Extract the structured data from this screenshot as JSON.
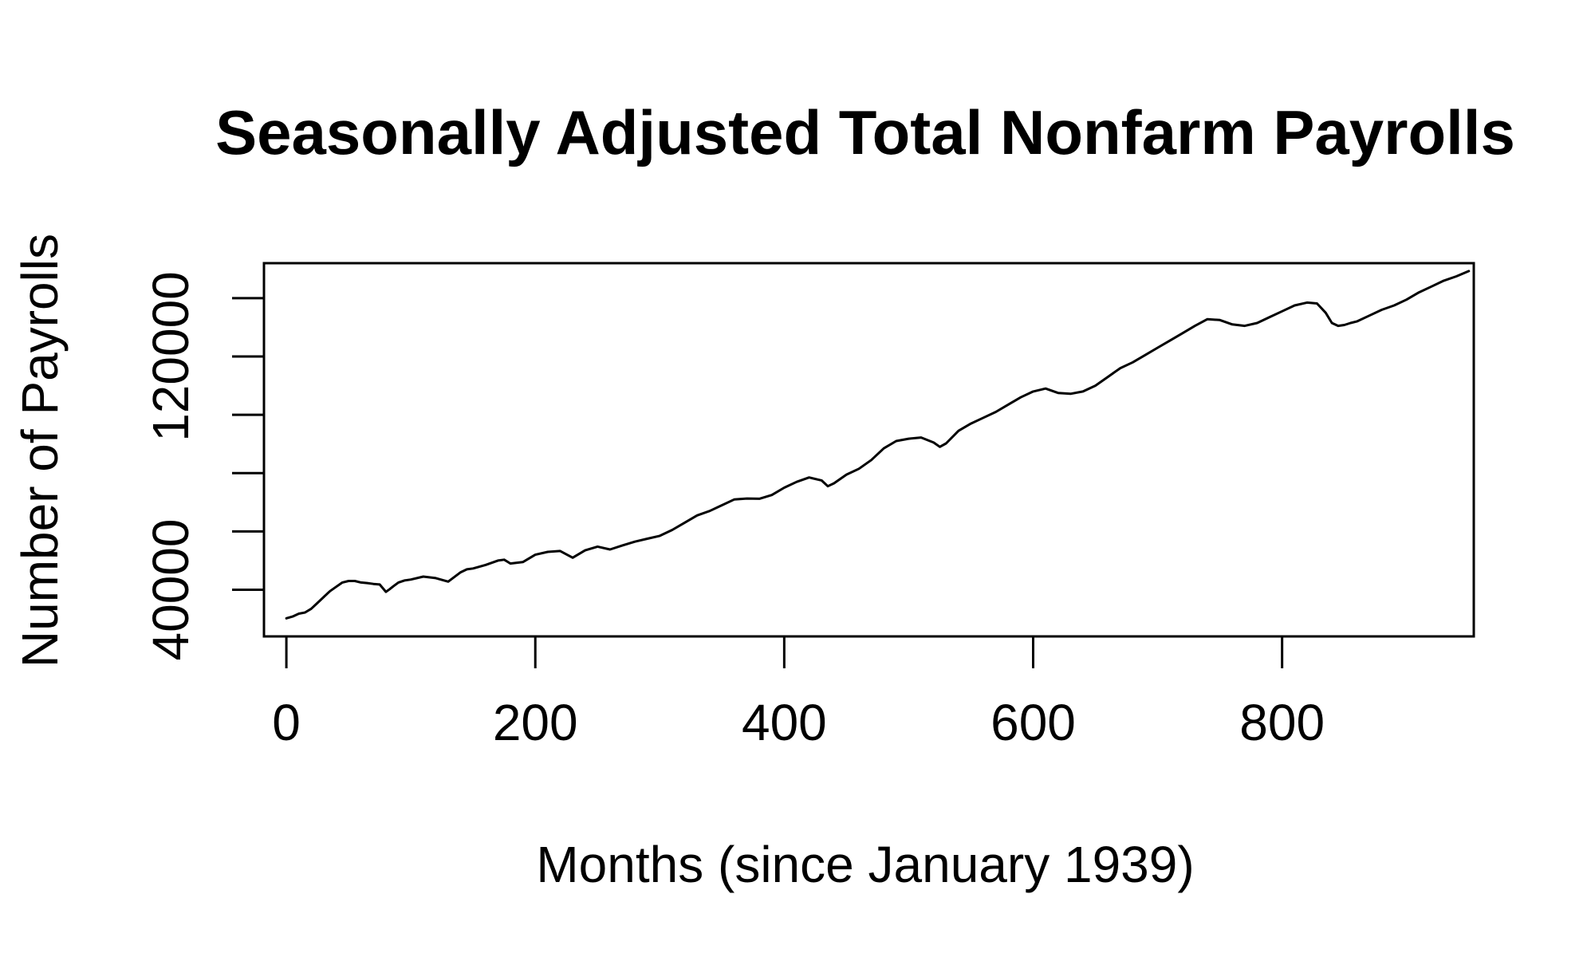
{
  "chart_data": {
    "type": "line",
    "title": "Seasonally Adjusted Total Nonfarm Payrolls",
    "xlabel": "Months (since January 1939)",
    "ylabel": "Number of Payrolls",
    "xlim": [
      -18,
      954
    ],
    "ylim": [
      24000,
      152000
    ],
    "grid": false,
    "x_ticks": [
      0,
      200,
      400,
      600,
      800
    ],
    "x_tick_labels": [
      "0",
      "200",
      "400",
      "600",
      "800"
    ],
    "y_ticks": [
      40000,
      60000,
      80000,
      100000,
      120000,
      140000
    ],
    "y_tick_labels": [
      "40000",
      "",
      "",
      "",
      "120000",
      ""
    ],
    "series": [
      {
        "x": [
          0,
          5,
          10,
          15,
          20,
          25,
          30,
          35,
          40,
          45,
          50,
          55,
          60,
          65,
          70,
          75,
          80,
          83,
          86,
          90,
          95,
          100,
          110,
          120,
          130,
          140,
          145,
          150,
          160,
          170,
          175,
          180,
          190,
          200,
          210,
          220,
          230,
          240,
          250,
          260,
          270,
          280,
          290,
          300,
          310,
          320,
          330,
          340,
          350,
          360,
          370,
          380,
          390,
          400,
          410,
          420,
          430,
          435,
          440,
          450,
          460,
          470,
          480,
          490,
          500,
          510,
          520,
          525,
          530,
          540,
          550,
          560,
          570,
          580,
          590,
          600,
          610,
          620,
          630,
          640,
          650,
          660,
          670,
          680,
          690,
          700,
          710,
          720,
          730,
          740,
          750,
          760,
          770,
          780,
          790,
          800,
          810,
          820,
          828,
          835,
          840,
          845,
          850,
          855,
          860,
          870,
          880,
          890,
          900,
          910,
          920,
          930,
          940,
          950
        ],
        "y": [
          30200,
          30800,
          31800,
          32200,
          33500,
          35500,
          37500,
          39500,
          41000,
          42500,
          43000,
          43000,
          42500,
          42300,
          42000,
          41800,
          39300,
          40200,
          41200,
          42500,
          43200,
          43500,
          44500,
          44000,
          42800,
          46000,
          47000,
          47300,
          48500,
          50000,
          50300,
          49000,
          49500,
          52000,
          53000,
          53300,
          51000,
          53500,
          54800,
          53800,
          55200,
          56500,
          57500,
          58500,
          60500,
          63000,
          65500,
          67000,
          69000,
          71000,
          71300,
          71200,
          72500,
          75000,
          77000,
          78500,
          77500,
          75500,
          76500,
          79500,
          81500,
          84500,
          88500,
          91000,
          91800,
          92200,
          90500,
          89000,
          90200,
          94500,
          97000,
          99000,
          101000,
          103500,
          106000,
          108000,
          109000,
          107500,
          107200,
          108000,
          110000,
          113000,
          116000,
          118000,
          120500,
          123000,
          125500,
          128000,
          130500,
          132800,
          132500,
          131000,
          130500,
          131500,
          133500,
          135500,
          137500,
          138500,
          138200,
          135000,
          131500,
          130500,
          130800,
          131500,
          132000,
          134000,
          136000,
          137500,
          139500,
          142000,
          144000,
          146000,
          147500,
          149300
        ]
      }
    ]
  }
}
